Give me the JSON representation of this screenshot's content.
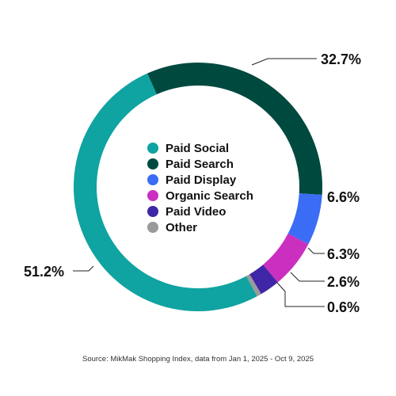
{
  "chart_data": {
    "type": "pie",
    "categories": [
      "Paid Social",
      "Paid Search",
      "Paid Display",
      "Organic Search",
      "Paid Video",
      "Other"
    ],
    "values": [
      51.2,
      32.7,
      6.6,
      6.3,
      2.6,
      0.6
    ],
    "value_labels": [
      "51.2%",
      "32.7%",
      "6.6%",
      "6.3%",
      "2.6%",
      "0.6%"
    ],
    "colors": [
      "#0fa3a1",
      "#00493f",
      "#3b6cf5",
      "#cb2fbf",
      "#3e26a6",
      "#9a9a9a"
    ],
    "legend": [
      "Paid Social",
      "Paid Search",
      "Paid Display",
      "Organic Search",
      "Paid Video",
      "Other"
    ],
    "legend_placement": "center",
    "title": "",
    "donut": true
  },
  "source": "Source: MikMak Shopping Index, data from Jan 1, 2025 - Oct 9, 2025"
}
